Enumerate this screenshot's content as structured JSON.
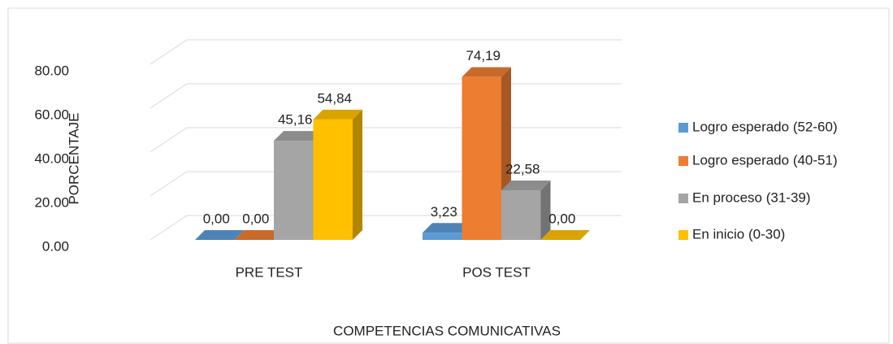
{
  "chart_data": {
    "type": "bar3d",
    "xlabel": "COMPETENCIAS COMUNICATIVAS",
    "ylabel": "PORCENTAJE",
    "categories": [
      "PRE TEST",
      "POS TEST"
    ],
    "series": [
      {
        "name": "Logro esperado (52-60)",
        "color": "#5b9bd5",
        "values": [
          0,
          3.23
        ],
        "value_labels": [
          "0,00",
          "3,23"
        ]
      },
      {
        "name": "Logro esperado (40-51)",
        "color": "#ed7d31",
        "values": [
          0,
          74.19
        ],
        "value_labels": [
          "0,00",
          "74,19"
        ]
      },
      {
        "name": "En proceso (31-39)",
        "color": "#a5a5a5",
        "values": [
          45.16,
          22.58
        ],
        "value_labels": [
          "45,16",
          "22,58"
        ]
      },
      {
        "name": "En inicio (0-30)",
        "color": "#ffc000",
        "values": [
          54.84,
          0
        ],
        "value_labels": [
          "54,84",
          "0,00"
        ]
      }
    ],
    "ylim": [
      0,
      80
    ],
    "yticks": [
      {
        "value": 0,
        "label": "0.00"
      },
      {
        "value": 20,
        "label": "20.00"
      },
      {
        "value": 40,
        "label": "40.00"
      },
      {
        "value": 60,
        "label": "60.00"
      },
      {
        "value": 80,
        "label": "80.00"
      }
    ],
    "grid": true,
    "legend": "right"
  }
}
